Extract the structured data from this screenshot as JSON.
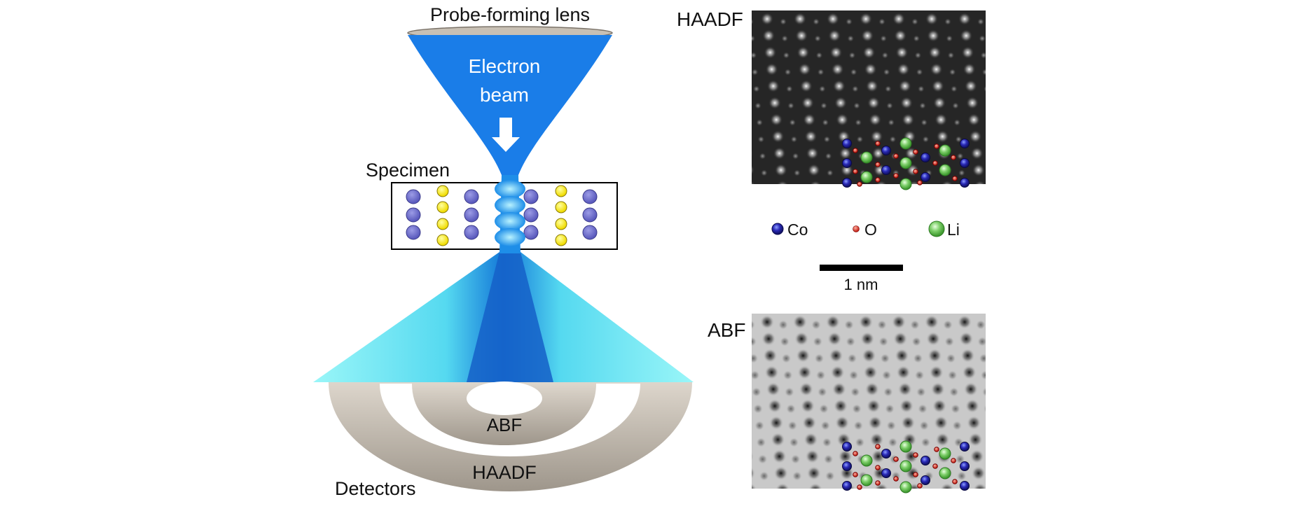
{
  "labels": {
    "probe_lens": "Probe-forming lens",
    "electron_beam_line1": "Electron",
    "electron_beam_line2": "beam",
    "specimen": "Specimen",
    "abf_detector": "ABF",
    "haadf_detector": "HAADF",
    "detectors": "Detectors",
    "haadf_image": "HAADF",
    "abf_image": "ABF"
  },
  "legend": [
    {
      "label": "Co",
      "color": "#1f1f9a"
    },
    {
      "label": "O",
      "color": "#d42a1e"
    },
    {
      "label": "Li",
      "color": "#6cc05a"
    }
  ],
  "scale_bar": {
    "label": "1 nm"
  },
  "colors": {
    "beam": "#1a7de8",
    "scatter_light": "#8ff2f7",
    "specimen_atom_a": "#7272cf",
    "specimen_atom_b": "#ffef1f",
    "detector": "#c2b9ad"
  }
}
